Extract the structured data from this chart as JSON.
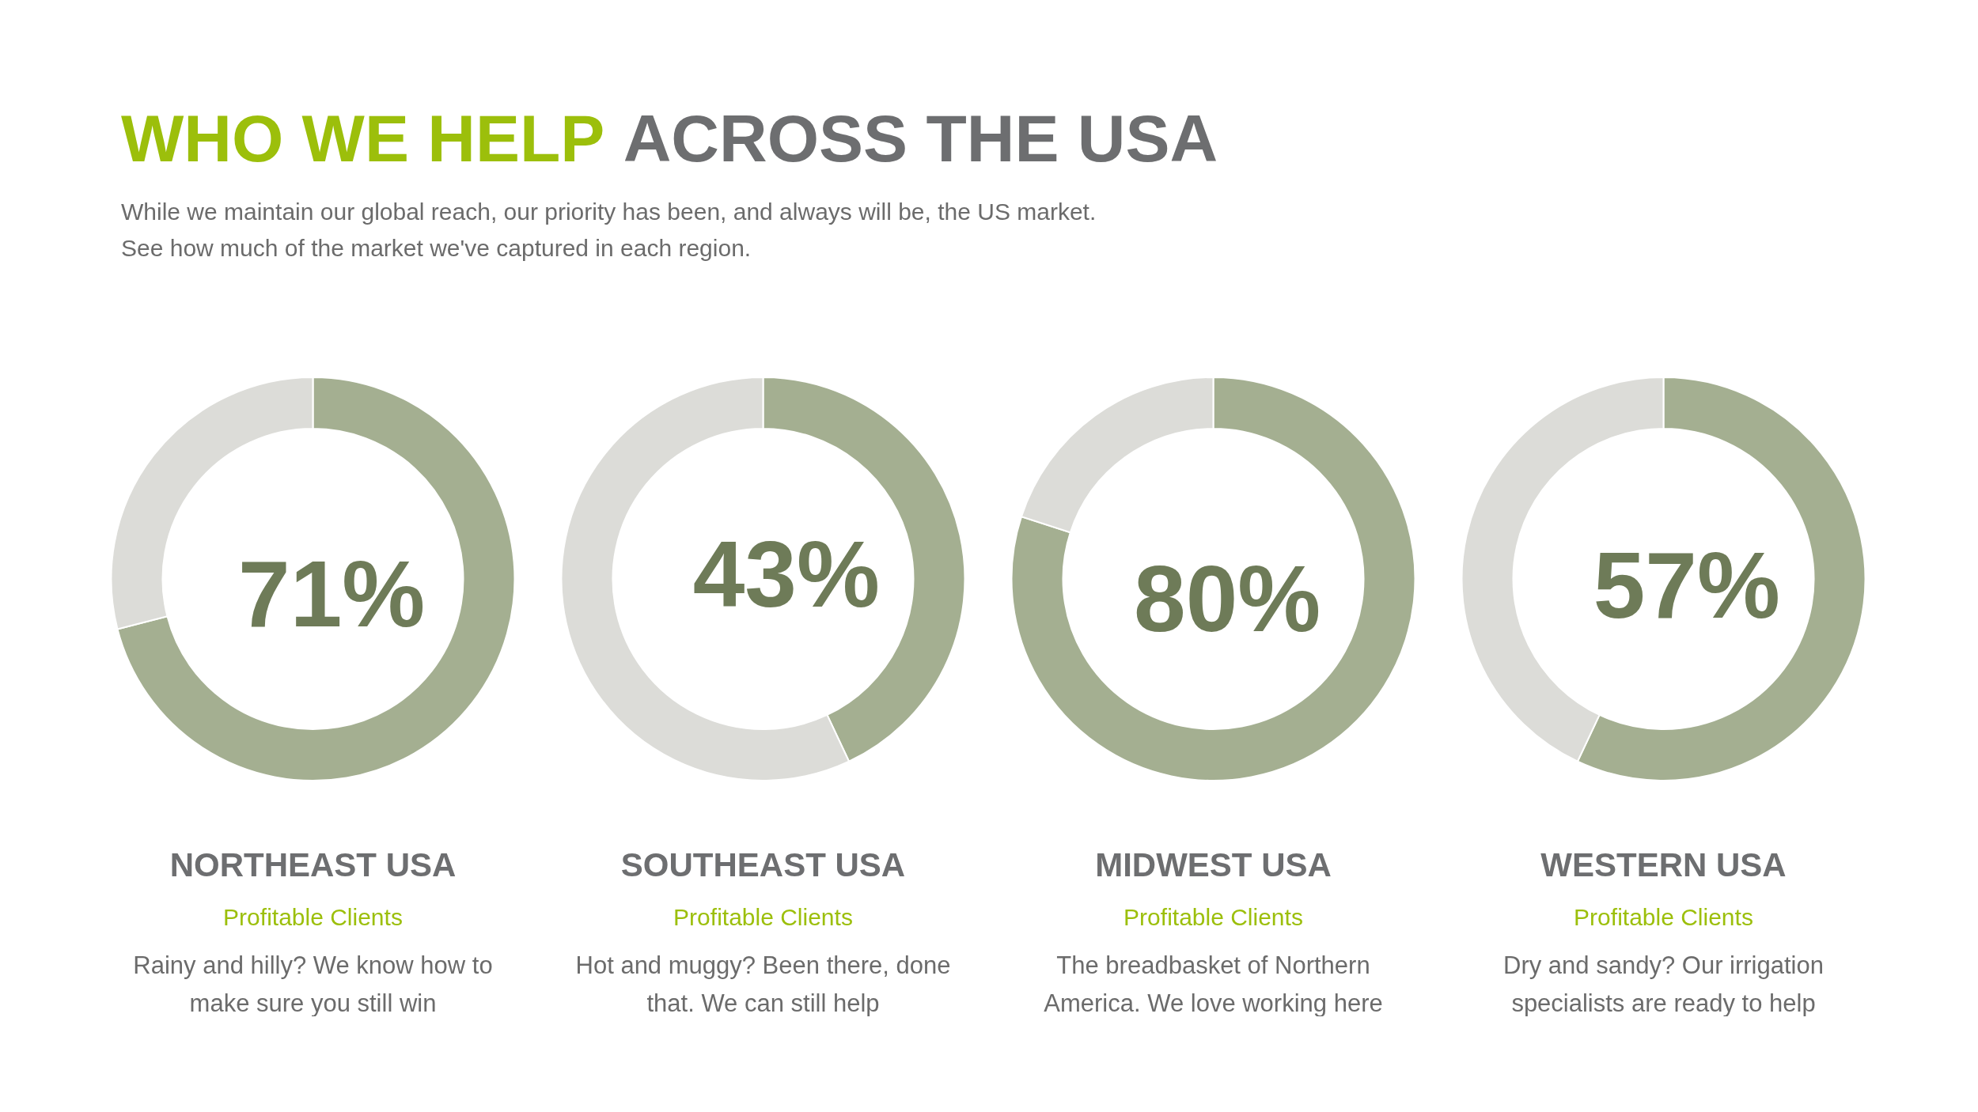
{
  "chart_data": [
    {
      "type": "other",
      "title": "WHO WE HELP ACROSS THE USA",
      "subtitle": "While we maintain our global reach, our priority has been, and always will be, the US market.\nSee how much of the market we've captured in each region."
    },
    {
      "type": "donut",
      "title": "NORTHEAST USA",
      "subtitle": "Profitable Clients",
      "annotations": [
        "Rainy and hilly? We know how to make sure you still win"
      ],
      "categories": [
        null,
        null
      ],
      "values": [
        71,
        29
      ],
      "colors": [
        "#a4af91",
        "#dcdcd8"
      ],
      "value_labels": [
        "71%",
        null
      ]
    },
    {
      "type": "donut",
      "title": "SOUTHEAST USA",
      "subtitle": "Profitable Clients",
      "annotations": [
        "Hot and muggy? Been there, done that. We can still help"
      ],
      "categories": [
        null,
        null
      ],
      "values": [
        43,
        57
      ],
      "colors": [
        "#a4af91",
        "#dcdcd8"
      ],
      "value_labels": [
        "43%",
        null
      ]
    },
    {
      "type": "donut",
      "title": "MIDWEST USA",
      "subtitle": "Profitable Clients",
      "annotations": [
        "The breadbasket of Northern America. We love working here"
      ],
      "categories": [
        null,
        null
      ],
      "values": [
        80,
        20
      ],
      "colors": [
        "#a4af91",
        "#dcdcd8"
      ],
      "value_labels": [
        "80%",
        null
      ]
    },
    {
      "type": "donut",
      "title": "WESTERN USA",
      "subtitle": "Profitable Clients",
      "annotations": [
        "Dry and sandy? Our irrigation specialists are ready to help"
      ],
      "categories": [
        null,
        null
      ],
      "values": [
        57,
        43
      ],
      "colors": [
        "#a4af91",
        "#dcdcd8"
      ],
      "value_labels": [
        "57%",
        null
      ]
    }
  ]
}
